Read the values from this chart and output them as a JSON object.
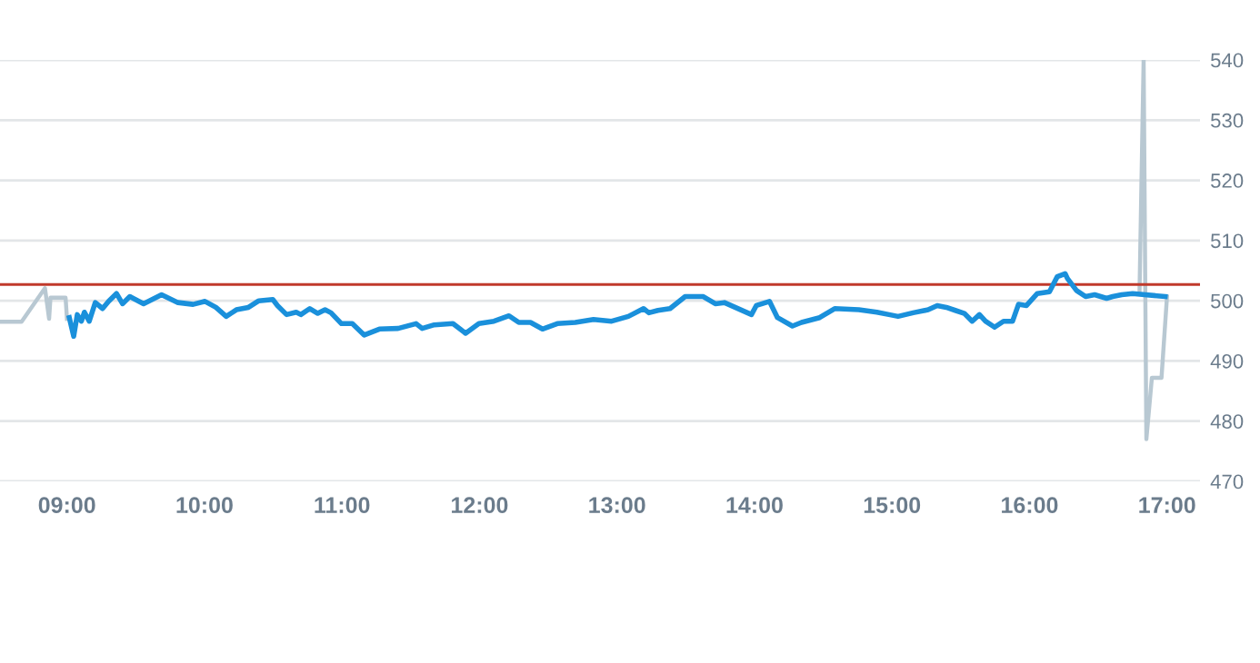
{
  "chart_data": {
    "type": "line",
    "xlim": [
      8.513,
      17.24
    ],
    "ylim": [
      470,
      540
    ],
    "xticks": [
      {
        "value": 9,
        "label": "09:00"
      },
      {
        "value": 10,
        "label": "10:00"
      },
      {
        "value": 11,
        "label": "11:00"
      },
      {
        "value": 12,
        "label": "12:00"
      },
      {
        "value": 13,
        "label": "13:00"
      },
      {
        "value": 14,
        "label": "14:00"
      },
      {
        "value": 15,
        "label": "15:00"
      },
      {
        "value": 16,
        "label": "16:00"
      },
      {
        "value": 17,
        "label": "17:00"
      }
    ],
    "yticks": [
      470,
      480,
      490,
      500,
      510,
      520,
      530,
      540
    ],
    "grid": "y",
    "marker": "none",
    "line_style": "solid",
    "ref_lines": [
      {
        "axis": "y",
        "value": 502.7,
        "color": "#c0392b"
      }
    ],
    "series": [
      {
        "color": "#b8c8d2",
        "x": [
          8.513,
          8.67,
          8.84,
          8.87,
          8.88,
          8.99,
          9.0
        ],
        "values": [
          496.5,
          496.5,
          502.1,
          497.0,
          500.5,
          500.5,
          497.0
        ]
      },
      {
        "color": "#1a90db",
        "x": [
          9.017,
          9.049,
          9.075,
          9.105,
          9.127,
          9.162,
          9.206,
          9.259,
          9.303,
          9.36,
          9.404,
          9.457,
          9.557,
          9.688,
          9.807,
          9.917,
          10.004,
          10.083,
          10.158,
          10.232,
          10.32,
          10.395,
          10.497,
          10.531,
          10.597,
          10.667,
          10.701,
          10.766,
          10.824,
          10.877,
          10.92,
          10.996,
          11.075,
          11.162,
          11.272,
          11.408,
          11.539,
          11.583,
          11.671,
          11.807,
          11.899,
          11.996,
          12.105,
          12.215,
          12.286,
          12.371,
          12.458,
          12.566,
          12.697,
          12.829,
          12.961,
          13.083,
          13.193,
          13.232,
          13.298,
          13.386,
          13.496,
          13.628,
          13.715,
          13.781,
          13.978,
          14.013,
          14.109,
          14.167,
          14.276,
          14.342,
          14.474,
          14.583,
          14.759,
          14.89,
          14.978,
          15.044,
          15.154,
          15.263,
          15.329,
          15.395,
          15.46,
          15.526,
          15.583,
          15.636,
          15.68,
          15.746,
          15.811,
          15.877,
          15.92,
          15.978,
          16.057,
          16.145,
          16.202,
          16.259,
          16.276,
          16.342,
          16.408,
          16.474,
          16.561,
          16.605,
          16.671,
          16.75,
          16.987
        ],
        "values": [
          497.2,
          494.1,
          497.7,
          496.6,
          498.1,
          496.6,
          499.7,
          498.7,
          499.9,
          501.2,
          499.5,
          500.7,
          499.5,
          501.0,
          499.7,
          499.4,
          499.9,
          498.9,
          497.4,
          498.5,
          498.9,
          500.0,
          500.2,
          499.2,
          497.7,
          498.1,
          497.7,
          498.7,
          497.9,
          498.5,
          498.0,
          496.2,
          496.2,
          494.3,
          495.3,
          495.4,
          496.2,
          495.4,
          496.0,
          496.2,
          494.6,
          496.2,
          496.6,
          497.5,
          496.4,
          496.4,
          495.3,
          496.2,
          496.4,
          496.9,
          496.6,
          497.4,
          498.7,
          498.0,
          498.4,
          498.7,
          500.7,
          500.7,
          499.5,
          499.7,
          497.7,
          499.2,
          499.9,
          497.2,
          495.8,
          496.4,
          497.2,
          498.7,
          498.5,
          498.1,
          497.7,
          497.4,
          498.0,
          498.5,
          499.2,
          498.9,
          498.4,
          497.9,
          496.6,
          497.7,
          496.6,
          495.6,
          496.6,
          496.6,
          499.4,
          499.2,
          501.2,
          501.5,
          504.0,
          504.5,
          503.7,
          501.7,
          500.7,
          501.0,
          500.4,
          500.7,
          501.0,
          501.2,
          500.7
        ]
      },
      {
        "color": "#b8c8d2",
        "x": [
          16.8,
          16.83,
          16.85,
          16.89,
          16.96,
          17.0
        ],
        "values": [
          501.2,
          540,
          477.0,
          487.2,
          487.2,
          500.7
        ]
      }
    ]
  }
}
